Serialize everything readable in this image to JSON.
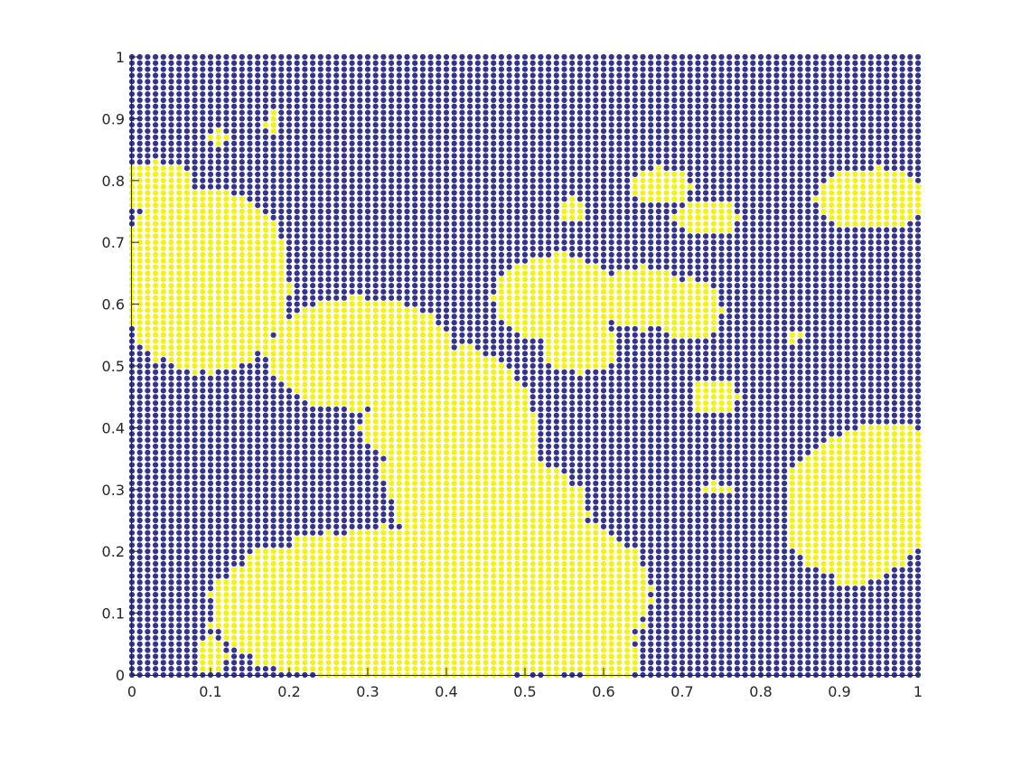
{
  "chart_data": {
    "type": "scatter",
    "title": "",
    "xlabel": "",
    "ylabel": "",
    "xlim": [
      0,
      1
    ],
    "ylim": [
      0,
      1
    ],
    "xticks": [
      "0",
      "0.1",
      "0.2",
      "0.3",
      "0.4",
      "0.5",
      "0.6",
      "0.7",
      "0.8",
      "0.9",
      "1"
    ],
    "yticks": [
      "0",
      "0.1",
      "0.2",
      "0.3",
      "0.4",
      "0.5",
      "0.6",
      "0.7",
      "0.8",
      "0.9",
      "1"
    ],
    "grid_spacing": 0.01,
    "description": "Two-state lattice (101 x 101 grid on [0,1] x [0,1]); each point colored by state",
    "state_colors": {
      "0": "#35348c",
      "1": "#f2f21a"
    },
    "state1_regions": [
      {
        "shape": "ellipse",
        "cx": 0.09,
        "cy": 0.64,
        "rx": 0.11,
        "ry": 0.15
      },
      {
        "shape": "ellipse",
        "cx": 0.03,
        "cy": 0.79,
        "rx": 0.05,
        "ry": 0.04
      },
      {
        "shape": "ellipse",
        "cx": 0.29,
        "cy": 0.52,
        "rx": 0.12,
        "ry": 0.09
      },
      {
        "shape": "ellipse",
        "cx": 0.35,
        "cy": 0.4,
        "rx": 0.06,
        "ry": 0.05
      },
      {
        "shape": "ellipse",
        "cx": 0.42,
        "cy": 0.35,
        "rx": 0.1,
        "ry": 0.18
      },
      {
        "shape": "ellipse",
        "cx": 0.36,
        "cy": 0.11,
        "rx": 0.26,
        "ry": 0.13
      },
      {
        "shape": "ellipse",
        "cx": 0.52,
        "cy": 0.13,
        "rx": 0.14,
        "ry": 0.13
      },
      {
        "shape": "ellipse",
        "cx": 0.49,
        "cy": 0.25,
        "rx": 0.09,
        "ry": 0.1
      },
      {
        "shape": "ellipse",
        "cx": 0.58,
        "cy": 0.17,
        "rx": 0.04,
        "ry": 0.05
      },
      {
        "shape": "ellipse",
        "cx": 0.61,
        "cy": 0.02,
        "rx": 0.04,
        "ry": 0.03
      },
      {
        "shape": "ellipse",
        "cx": 0.19,
        "cy": 0.11,
        "rx": 0.07,
        "ry": 0.1
      },
      {
        "shape": "ellipse",
        "cx": 0.54,
        "cy": 0.61,
        "rx": 0.08,
        "ry": 0.07
      },
      {
        "shape": "ellipse",
        "cx": 0.57,
        "cy": 0.53,
        "rx": 0.05,
        "ry": 0.04
      },
      {
        "shape": "ellipse",
        "cx": 0.65,
        "cy": 0.61,
        "rx": 0.06,
        "ry": 0.05
      },
      {
        "shape": "ellipse",
        "cx": 0.71,
        "cy": 0.59,
        "rx": 0.04,
        "ry": 0.05
      },
      {
        "shape": "ellipse",
        "cx": 0.73,
        "cy": 0.74,
        "rx": 0.04,
        "ry": 0.03
      },
      {
        "shape": "ellipse",
        "cx": 0.67,
        "cy": 0.79,
        "rx": 0.04,
        "ry": 0.03
      },
      {
        "shape": "ellipse",
        "cx": 0.56,
        "cy": 0.75,
        "rx": 0.02,
        "ry": 0.02
      },
      {
        "shape": "ellipse",
        "cx": 0.94,
        "cy": 0.77,
        "rx": 0.07,
        "ry": 0.05
      },
      {
        "shape": "ellipse",
        "cx": 0.92,
        "cy": 0.27,
        "rx": 0.09,
        "ry": 0.12
      },
      {
        "shape": "ellipse",
        "cx": 0.96,
        "cy": 0.36,
        "rx": 0.06,
        "ry": 0.05
      },
      {
        "shape": "ellipse",
        "cx": 0.74,
        "cy": 0.45,
        "rx": 0.03,
        "ry": 0.03
      },
      {
        "shape": "ellipse",
        "cx": 0.84,
        "cy": 0.55,
        "rx": 0.01,
        "ry": 0.01
      },
      {
        "shape": "ellipse",
        "cx": 0.74,
        "cy": 0.3,
        "rx": 0.02,
        "ry": 0.01
      },
      {
        "shape": "ellipse",
        "cx": 0.11,
        "cy": 0.87,
        "rx": 0.02,
        "ry": 0.01
      },
      {
        "shape": "ellipse",
        "cx": 0.18,
        "cy": 0.89,
        "rx": 0.01,
        "ry": 0.02
      },
      {
        "shape": "ellipse",
        "cx": 0.1,
        "cy": 0.03,
        "rx": 0.02,
        "ry": 0.03
      }
    ]
  }
}
